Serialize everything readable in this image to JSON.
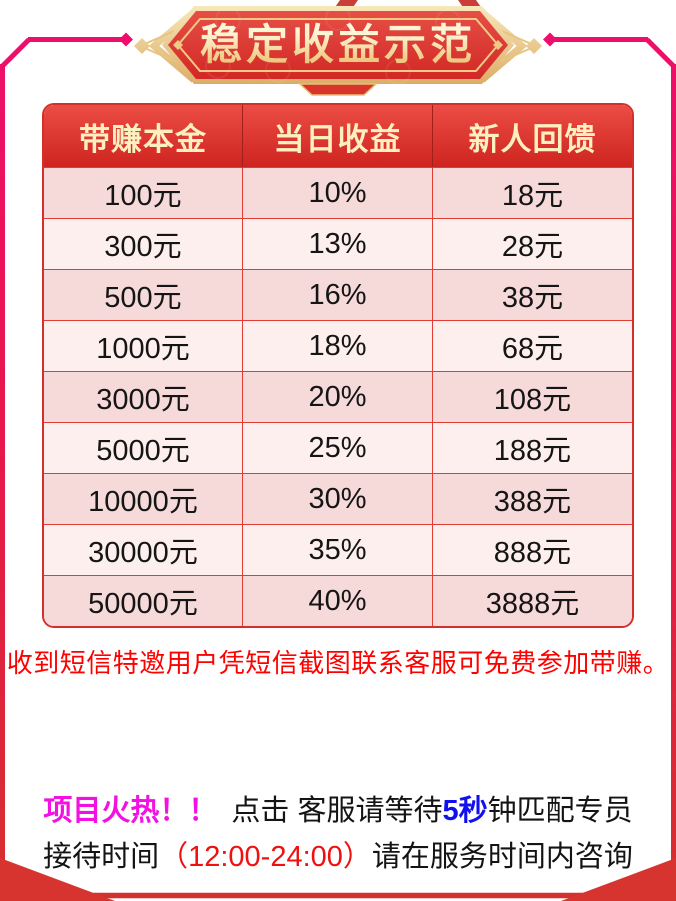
{
  "banner": {
    "title": "稳定收益示范"
  },
  "table": {
    "headers": [
      "带赚本金",
      "当日收益",
      "新人回馈"
    ],
    "rows": [
      [
        "100元",
        "10%",
        "18元"
      ],
      [
        "300元",
        "13%",
        "28元"
      ],
      [
        "500元",
        "16%",
        "38元"
      ],
      [
        "1000元",
        "18%",
        "68元"
      ],
      [
        "3000元",
        "20%",
        "108元"
      ],
      [
        "5000元",
        "25%",
        "188元"
      ],
      [
        "10000元",
        "30%",
        "388元"
      ],
      [
        "30000元",
        "35%",
        "888元"
      ],
      [
        "50000元",
        "40%",
        "3888元"
      ]
    ]
  },
  "note": {
    "text": "收到短信特邀用户凭短信截图联系客服可免费参加带赚。"
  },
  "footer": {
    "hot": "项目火热！！",
    "mid": "点击 客服请等待",
    "seconds": "5秒",
    "tail1": "钟匹配专员",
    "lead2": "接待时间",
    "time": "（12:00-24:00）",
    "tail2": "请在服务时间内咨询"
  },
  "colors": {
    "frame_pink": "#ee0e6e",
    "frame_red": "#d5302e",
    "banner_red": "#d6231f",
    "banner_gold": "#e8bf74",
    "header_red": "#d62a25",
    "header_text": "#fdf0c0",
    "row_pink": "#f6d9d9",
    "row_light": "#fdefee",
    "cell_border": "#e23c34",
    "note_red": "#ff0000",
    "hot_magenta": "#f211e2",
    "seconds_blue": "#1111f0",
    "time_red": "#f01010"
  }
}
